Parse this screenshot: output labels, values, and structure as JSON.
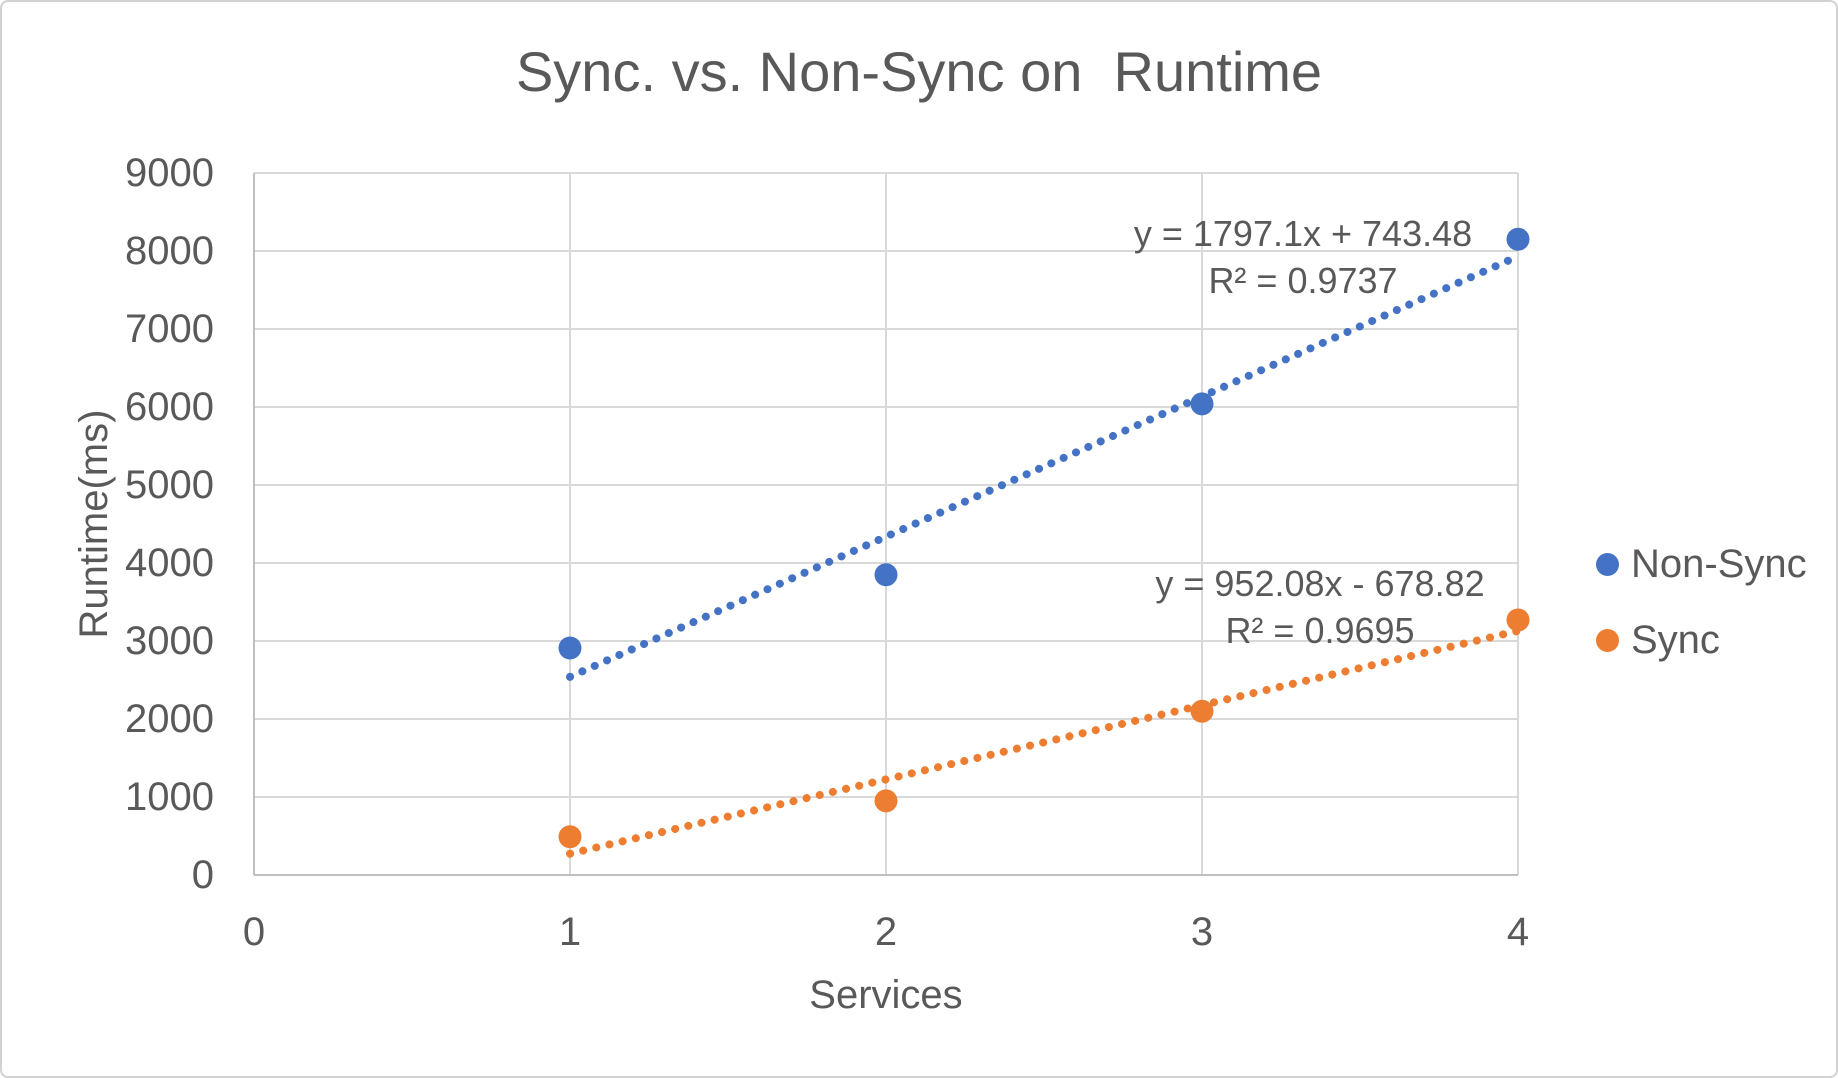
{
  "window": {
    "background": "#FFFFFF",
    "border_color": "#D2D2D2"
  },
  "chart_data": {
    "type": "scatter",
    "title": "Sync. vs. Non-Sync on  Runtime",
    "xlabel": "Services",
    "ylabel": "Runtime(ms)",
    "xlim": [
      0,
      4
    ],
    "ylim": [
      0,
      9000
    ],
    "x_ticks": [
      0,
      1,
      2,
      3,
      4
    ],
    "y_ticks": [
      0,
      1000,
      2000,
      3000,
      4000,
      5000,
      6000,
      7000,
      8000,
      9000
    ],
    "grid": true,
    "legend_position": "right-center",
    "text_color": "#595959",
    "gridline_color": "#D9D9D9",
    "axis_line_color": "#BFBFBF",
    "x": [
      1,
      2,
      3,
      4
    ],
    "series": [
      {
        "name": "Non-Sync",
        "color": "#4472C4",
        "marker": "circle",
        "values": [
          2910,
          3850,
          6040,
          8150
        ],
        "trendline": {
          "type": "linear",
          "style": "dotted",
          "slope": 1797.1,
          "intercept": 743.48,
          "equation_label": "y = 1797.1x + 743.48",
          "r2_label": "R² = 0.9737"
        }
      },
      {
        "name": "Sync",
        "color": "#ED7D31",
        "marker": "circle",
        "values": [
          490,
          950,
          2100,
          3270
        ],
        "trendline": {
          "type": "linear",
          "style": "dotted",
          "slope": 952.08,
          "intercept": -678.82,
          "equation_label": "y = 952.08x - 678.82",
          "r2_label": "R² = 0.9695"
        }
      }
    ]
  }
}
